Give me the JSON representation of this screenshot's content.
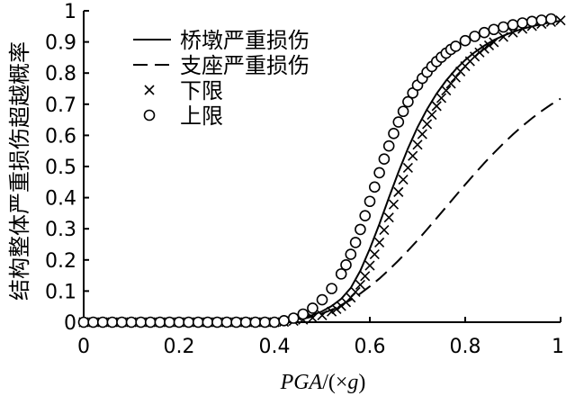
{
  "chart_data": {
    "type": "line",
    "title": "",
    "xlabel": "PGA/(×g)",
    "xlabel_parts": {
      "main_italic": "PGA",
      "sep": "/(×",
      "unit_italic": "g",
      "close": ")"
    },
    "ylabel": "结构整体严重损伤超越概率",
    "xlim": [
      0,
      1
    ],
    "ylim": [
      0,
      1
    ],
    "xticks": [
      {
        "value": 0,
        "label": "0"
      },
      {
        "value": 0.2,
        "label": "0.2"
      },
      {
        "value": 0.4,
        "label": "0.4"
      },
      {
        "value": 0.6,
        "label": "0.6"
      },
      {
        "value": 0.8,
        "label": "0.8"
      },
      {
        "value": 1,
        "label": "1"
      }
    ],
    "yticks": [
      {
        "value": 0,
        "label": "0"
      },
      {
        "value": 0.1,
        "label": "0.1"
      },
      {
        "value": 0.2,
        "label": "0.2"
      },
      {
        "value": 0.3,
        "label": "0.3"
      },
      {
        "value": 0.4,
        "label": "0.4"
      },
      {
        "value": 0.5,
        "label": "0.5"
      },
      {
        "value": 0.6,
        "label": "0.6"
      },
      {
        "value": 0.7,
        "label": "0.7"
      },
      {
        "value": 0.8,
        "label": "0.8"
      },
      {
        "value": 0.9,
        "label": "0.9"
      },
      {
        "value": 1,
        "label": "1"
      }
    ],
    "grid": false,
    "legend_position": "top-left",
    "series": [
      {
        "name": "桥墩严重损伤",
        "style": "solid",
        "marker": "none",
        "color": "#000000",
        "x": [
          0.0,
          0.02,
          0.04,
          0.06,
          0.08,
          0.1,
          0.12,
          0.14,
          0.16,
          0.18,
          0.2,
          0.22,
          0.24,
          0.26,
          0.28,
          0.3,
          0.32,
          0.34,
          0.36,
          0.38,
          0.4,
          0.42,
          0.44,
          0.46,
          0.48,
          0.5,
          0.52,
          0.54,
          0.56,
          0.58,
          0.6,
          0.62,
          0.64,
          0.66,
          0.68,
          0.7,
          0.72,
          0.74,
          0.76,
          0.78,
          0.8,
          0.82,
          0.84,
          0.86,
          0.88,
          0.9,
          0.92,
          0.94,
          0.96,
          0.98,
          1.0
        ],
        "y": [
          0,
          0,
          0,
          0,
          0,
          0,
          0,
          0,
          0,
          0,
          0,
          0,
          0,
          0,
          0,
          0,
          0,
          0,
          0,
          0,
          0,
          0.003,
          0.008,
          0.015,
          0.023,
          0.035,
          0.052,
          0.075,
          0.11,
          0.165,
          0.236,
          0.315,
          0.4,
          0.482,
          0.558,
          0.626,
          0.684,
          0.734,
          0.776,
          0.812,
          0.842,
          0.867,
          0.888,
          0.906,
          0.92,
          0.932,
          0.942,
          0.95,
          0.957,
          0.963,
          0.968
        ]
      },
      {
        "name": "支座严重损伤",
        "style": "dashed",
        "marker": "none",
        "color": "#000000",
        "x": [
          0.0,
          0.02,
          0.04,
          0.06,
          0.08,
          0.1,
          0.12,
          0.14,
          0.16,
          0.18,
          0.2,
          0.22,
          0.24,
          0.26,
          0.28,
          0.3,
          0.32,
          0.34,
          0.36,
          0.38,
          0.4,
          0.42,
          0.44,
          0.46,
          0.48,
          0.5,
          0.52,
          0.54,
          0.56,
          0.58,
          0.6,
          0.62,
          0.64,
          0.66,
          0.68,
          0.7,
          0.72,
          0.74,
          0.76,
          0.78,
          0.8,
          0.82,
          0.84,
          0.86,
          0.88,
          0.9,
          0.92,
          0.94,
          0.96,
          0.98,
          1.0
        ],
        "y": [
          0,
          0,
          0,
          0,
          0,
          0,
          0,
          0,
          0,
          0,
          0,
          0,
          0,
          0,
          0,
          0,
          0,
          0,
          0,
          0,
          0,
          0.002,
          0.006,
          0.011,
          0.018,
          0.028,
          0.04,
          0.055,
          0.072,
          0.092,
          0.115,
          0.14,
          0.168,
          0.198,
          0.23,
          0.263,
          0.298,
          0.334,
          0.37,
          0.406,
          0.442,
          0.477,
          0.511,
          0.543,
          0.574,
          0.603,
          0.63,
          0.655,
          0.678,
          0.699,
          0.718
        ]
      },
      {
        "name": "下限",
        "style": "none",
        "marker": "x",
        "color": "#000000",
        "x": [
          0.0,
          0.02,
          0.04,
          0.06,
          0.08,
          0.1,
          0.12,
          0.14,
          0.16,
          0.18,
          0.2,
          0.22,
          0.24,
          0.26,
          0.28,
          0.3,
          0.32,
          0.34,
          0.36,
          0.38,
          0.4,
          0.42,
          0.44,
          0.46,
          0.48,
          0.5,
          0.52,
          0.53,
          0.54,
          0.55,
          0.56,
          0.57,
          0.58,
          0.59,
          0.6,
          0.61,
          0.62,
          0.63,
          0.64,
          0.65,
          0.66,
          0.67,
          0.68,
          0.69,
          0.7,
          0.71,
          0.72,
          0.73,
          0.74,
          0.75,
          0.76,
          0.77,
          0.78,
          0.79,
          0.8,
          0.81,
          0.82,
          0.83,
          0.84,
          0.85,
          0.86,
          0.88,
          0.9,
          0.92,
          0.94,
          0.96,
          0.98,
          1.0
        ],
        "y": [
          0,
          0,
          0,
          0,
          0,
          0,
          0,
          0,
          0,
          0,
          0,
          0,
          0,
          0,
          0,
          0,
          0,
          0,
          0,
          0,
          0,
          0.001,
          0.004,
          0.008,
          0.014,
          0.022,
          0.034,
          0.042,
          0.052,
          0.064,
          0.079,
          0.097,
          0.12,
          0.148,
          0.182,
          0.218,
          0.256,
          0.296,
          0.336,
          0.378,
          0.418,
          0.458,
          0.496,
          0.534,
          0.57,
          0.604,
          0.636,
          0.666,
          0.694,
          0.72,
          0.744,
          0.766,
          0.786,
          0.805,
          0.822,
          0.838,
          0.853,
          0.866,
          0.878,
          0.889,
          0.899,
          0.916,
          0.93,
          0.942,
          0.951,
          0.958,
          0.964,
          0.969
        ]
      },
      {
        "name": "上限",
        "style": "none",
        "marker": "o",
        "color": "#000000",
        "x": [
          0.0,
          0.02,
          0.04,
          0.06,
          0.08,
          0.1,
          0.12,
          0.14,
          0.16,
          0.18,
          0.2,
          0.22,
          0.24,
          0.26,
          0.28,
          0.3,
          0.32,
          0.34,
          0.36,
          0.38,
          0.4,
          0.42,
          0.44,
          0.46,
          0.48,
          0.5,
          0.52,
          0.54,
          0.55,
          0.56,
          0.57,
          0.58,
          0.59,
          0.6,
          0.61,
          0.62,
          0.63,
          0.64,
          0.65,
          0.66,
          0.67,
          0.68,
          0.69,
          0.7,
          0.71,
          0.72,
          0.73,
          0.74,
          0.75,
          0.76,
          0.77,
          0.78,
          0.8,
          0.82,
          0.84,
          0.86,
          0.88,
          0.9,
          0.92,
          0.94,
          0.96,
          0.98
        ],
        "y": [
          0,
          0,
          0,
          0,
          0,
          0,
          0,
          0,
          0,
          0,
          0,
          0,
          0,
          0,
          0,
          0,
          0,
          0,
          0,
          0,
          0,
          0.005,
          0.013,
          0.026,
          0.045,
          0.072,
          0.108,
          0.155,
          0.184,
          0.218,
          0.256,
          0.298,
          0.342,
          0.388,
          0.434,
          0.48,
          0.524,
          0.566,
          0.606,
          0.643,
          0.677,
          0.708,
          0.736,
          0.761,
          0.783,
          0.803,
          0.821,
          0.837,
          0.851,
          0.864,
          0.876,
          0.886,
          0.904,
          0.918,
          0.93,
          0.94,
          0.948,
          0.955,
          0.961,
          0.966,
          0.97,
          0.974
        ]
      }
    ]
  }
}
